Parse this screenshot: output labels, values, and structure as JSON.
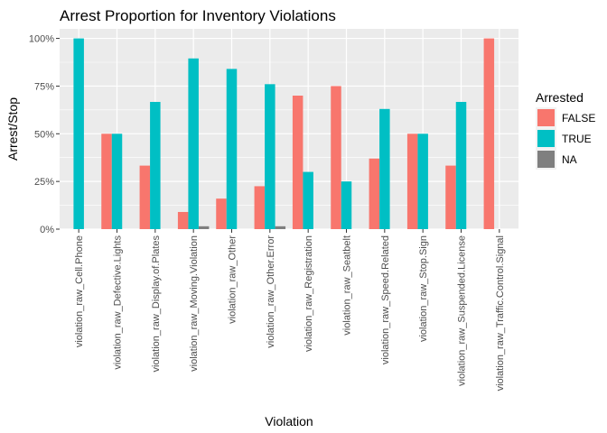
{
  "chart_data": {
    "type": "bar",
    "title": "Arrest Proportion for Inventory Violations",
    "xlabel": "Violation",
    "ylabel": "Arrest/Stop",
    "ylim": [
      0,
      1.05
    ],
    "y_ticks": [
      0,
      0.25,
      0.5,
      0.75,
      1.0
    ],
    "y_tick_labels": [
      "0%",
      "25%",
      "50%",
      "75%",
      "100%"
    ],
    "grid": true,
    "legend_position": "right",
    "legend_title": "Arrested",
    "categories": [
      "violation_raw_Cell.Phone",
      "violation_raw_Defective.Lights",
      "violation_raw_Display.of.Plates",
      "violation_raw_Moving.Violation",
      "violation_raw_Other",
      "violation_raw_Other.Error",
      "violation_raw_Registration",
      "violation_raw_Seatbelt",
      "violation_raw_Speed.Related",
      "violation_raw_Stop.Sign",
      "violation_raw_Suspended.License",
      "violation_raw_Traffic.Control.Signal"
    ],
    "series": [
      {
        "name": "FALSE",
        "color": "#F8766D",
        "values": [
          0,
          0.5,
          0.333,
          0.09,
          0.16,
          0.225,
          0.7,
          0.75,
          0.37,
          0.5,
          0.333,
          1.0
        ]
      },
      {
        "name": "TRUE",
        "color": "#00BFC4",
        "values": [
          1.0,
          0.5,
          0.667,
          0.895,
          0.84,
          0.76,
          0.3,
          0.25,
          0.63,
          0.5,
          0.667,
          0
        ]
      },
      {
        "name": "NA",
        "color": "#7F7F7F",
        "values": [
          0,
          0,
          0,
          0.015,
          0,
          0.015,
          0,
          0,
          0,
          0,
          0,
          0
        ]
      }
    ]
  }
}
